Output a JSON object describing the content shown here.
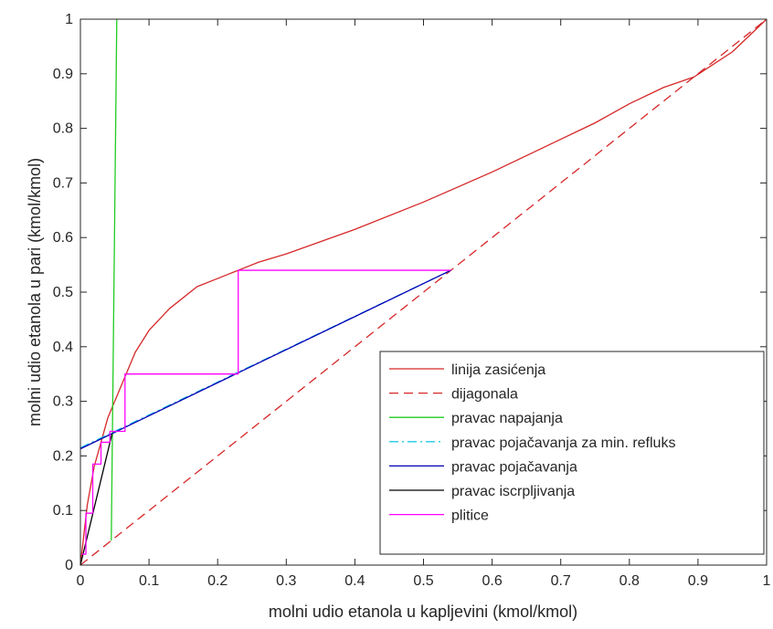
{
  "chart_data": {
    "type": "line",
    "xlabel": "molni udio etanola u kapljevini (kmol/kmol)",
    "ylabel": "molni udio etanola u pari (kmol/kmol)",
    "xlim": [
      0,
      1
    ],
    "ylim": [
      0,
      1
    ],
    "xticks": [
      "0",
      "0.1",
      "0.2",
      "0.3",
      "0.4",
      "0.5",
      "0.6",
      "0.7",
      "0.8",
      "0.9",
      "1"
    ],
    "yticks": [
      "0",
      "0.1",
      "0.2",
      "0.3",
      "0.4",
      "0.5",
      "0.6",
      "0.7",
      "0.8",
      "0.9",
      "1"
    ],
    "grid": false,
    "legend_position": "bottom-right",
    "series": [
      {
        "name": "linija zasićenja",
        "color": "#d62728",
        "style": "solid",
        "x": [
          0,
          0.01,
          0.02,
          0.04,
          0.06,
          0.08,
          0.1,
          0.13,
          0.17,
          0.2,
          0.23,
          0.26,
          0.3,
          0.4,
          0.5,
          0.6,
          0.7,
          0.75,
          0.8,
          0.85,
          0.894,
          0.95,
          1.0
        ],
        "y": [
          0,
          0.11,
          0.18,
          0.27,
          0.33,
          0.39,
          0.43,
          0.47,
          0.51,
          0.525,
          0.54,
          0.555,
          0.57,
          0.615,
          0.665,
          0.72,
          0.78,
          0.81,
          0.845,
          0.875,
          0.894,
          0.94,
          1.0
        ]
      },
      {
        "name": "dijagonala",
        "color": "#d62728",
        "style": "dashed",
        "x": [
          0,
          1
        ],
        "y": [
          0,
          1
        ]
      },
      {
        "name": "pravac napajanja",
        "color": "#22cc22",
        "style": "solid",
        "x": [
          0.045,
          0.053
        ],
        "y": [
          0.045,
          1.0
        ]
      },
      {
        "name": "pravac pojačavanja za min. refluks",
        "color": "#1ec8e6",
        "style": "dashdot",
        "x": [
          0,
          0.54
        ],
        "y": [
          0.215,
          0.54
        ]
      },
      {
        "name": "pravac pojačavanja",
        "color": "#0000b4",
        "style": "solid",
        "x": [
          0,
          0.54
        ],
        "y": [
          0.213,
          0.54
        ]
      },
      {
        "name": "pravac iscrpljivanja",
        "color": "#000000",
        "style": "solid",
        "x": [
          0,
          0.046
        ],
        "y": [
          0,
          0.24
        ]
      },
      {
        "name": "plitice",
        "color": "#ff00ff",
        "style": "solid",
        "x": [
          0.54,
          0.23,
          0.23,
          0.065,
          0.065,
          0.043,
          0.043,
          0.03,
          0.03,
          0.018,
          0.018,
          0.008,
          0.008,
          0.002
        ],
        "y": [
          0.54,
          0.54,
          0.35,
          0.35,
          0.245,
          0.245,
          0.225,
          0.225,
          0.185,
          0.185,
          0.095,
          0.095,
          0.02,
          0.02
        ]
      }
    ]
  }
}
